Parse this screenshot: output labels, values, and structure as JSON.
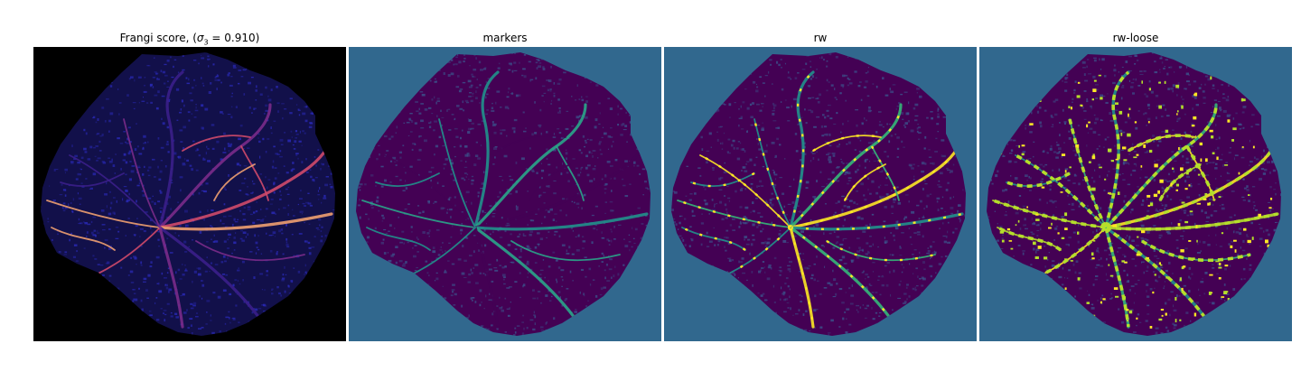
{
  "panels": [
    {
      "title_prefix": "Frangi score, (",
      "title_symbol": "σ",
      "title_subscript": "3",
      "title_suffix": " = 0.910)",
      "background": "#000000",
      "tissue": "#12104a",
      "speckle": "#2a2ab8",
      "vessel_colors": [
        "#3b1f8a",
        "#7a2b8a",
        "#d04a6a",
        "#f0a070"
      ]
    },
    {
      "title": "markers",
      "background": "#31688e",
      "tissue": "#440154",
      "speckle": "#3b528b",
      "vessel_colors": [
        "#21918c",
        "#2aa58a",
        "#440154"
      ]
    },
    {
      "title": "rw",
      "background": "#31688e",
      "tissue": "#440154",
      "speckle": "#3b528b",
      "vessel_colors": [
        "#21918c",
        "#35b779",
        "#fde725"
      ]
    },
    {
      "title": "rw-loose",
      "background": "#31688e",
      "tissue": "#440154",
      "speckle": "#3b528b",
      "vessel_colors": [
        "#21918c",
        "#35b779",
        "#fde725",
        "#b5de2b"
      ]
    }
  ]
}
